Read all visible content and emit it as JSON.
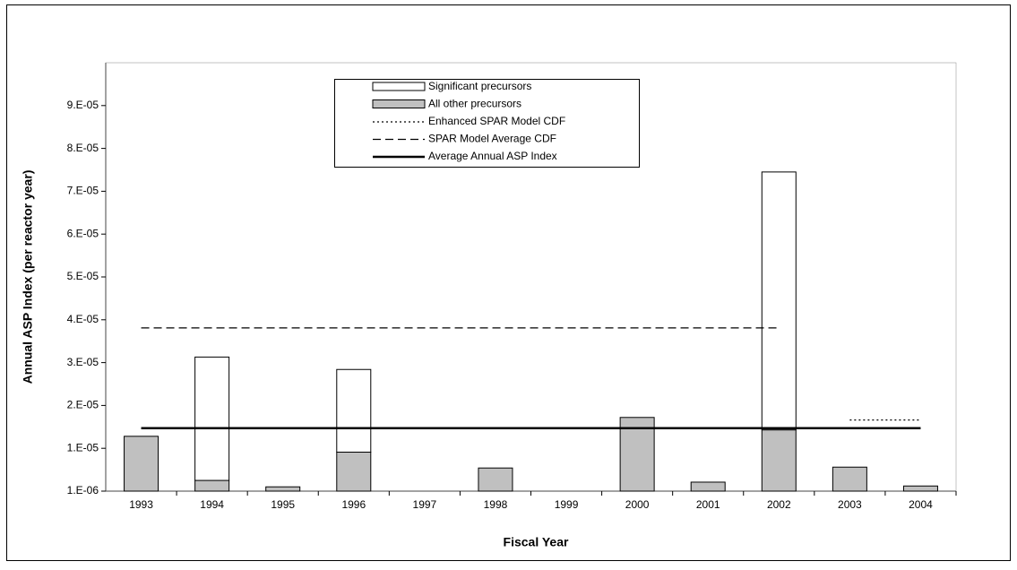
{
  "chart_data": {
    "type": "bar",
    "x_label": "Fiscal Year",
    "y_label": "Annual ASP Index (per reactor year)",
    "categories": [
      "1993",
      "1994",
      "1995",
      "1996",
      "1997",
      "1998",
      "1999",
      "2000",
      "2001",
      "2002",
      "2003",
      "2004"
    ],
    "series": [
      {
        "name": "All other precursors",
        "kind": "bar",
        "color": "#c0c0c0",
        "values": [
          1.38e-05,
          3.5e-06,
          2e-06,
          1.01e-05,
          null,
          6.4e-06,
          null,
          1.82e-05,
          3.1e-06,
          1.53e-05,
          6.6e-06,
          2.2e-06
        ]
      },
      {
        "name": "Significant precursors",
        "kind": "bar",
        "color": "#ffffff",
        "values": [
          null,
          2.88e-05,
          null,
          1.93e-05,
          null,
          null,
          null,
          null,
          null,
          6.02e-05,
          null,
          null
        ]
      },
      {
        "name": "Enhanced SPAR Model CDF",
        "kind": "line",
        "dash": "2,3",
        "color": "#000000",
        "values": [
          null,
          null,
          null,
          null,
          null,
          null,
          null,
          null,
          null,
          null,
          1.76e-05,
          1.76e-05
        ]
      },
      {
        "name": "SPAR Model Average CDF",
        "kind": "line",
        "dash": "9,5",
        "color": "#000000",
        "values": [
          3.91e-05,
          3.91e-05,
          3.91e-05,
          3.91e-05,
          3.91e-05,
          3.91e-05,
          3.91e-05,
          3.91e-05,
          3.91e-05,
          3.91e-05,
          null,
          null
        ]
      },
      {
        "name": "Average Annual ASP Index",
        "kind": "line",
        "dash": "none",
        "color": "#000000",
        "values": [
          1.57e-05,
          1.57e-05,
          1.57e-05,
          1.57e-05,
          1.57e-05,
          1.57e-05,
          1.57e-05,
          1.57e-05,
          1.57e-05,
          1.57e-05,
          1.57e-05,
          1.57e-05
        ]
      }
    ],
    "ylim": [
      1e-06,
      0.000101
    ],
    "yticks": [
      {
        "value": 1e-06,
        "label": "1.E-06"
      },
      {
        "value": 1.1e-05,
        "label": "1.E-05"
      },
      {
        "value": 2.1e-05,
        "label": "2.E-05"
      },
      {
        "value": 3.1e-05,
        "label": "3.E-05"
      },
      {
        "value": 4.1e-05,
        "label": "4.E-05"
      },
      {
        "value": 5.1e-05,
        "label": "5.E-05"
      },
      {
        "value": 6.1e-05,
        "label": "6.E-05"
      },
      {
        "value": 7.1e-05,
        "label": "7.E-05"
      },
      {
        "value": 8.1e-05,
        "label": "8.E-05"
      },
      {
        "value": 9.1e-05,
        "label": "9.E-05"
      }
    ],
    "legend_order": [
      1,
      0,
      2,
      3,
      4
    ],
    "grid": false
  }
}
